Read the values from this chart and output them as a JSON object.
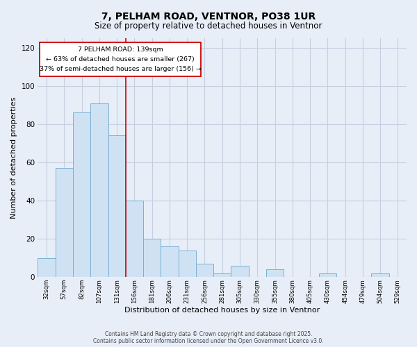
{
  "title": "7, PELHAM ROAD, VENTNOR, PO38 1UR",
  "subtitle": "Size of property relative to detached houses in Ventnor",
  "xlabel": "Distribution of detached houses by size in Ventnor",
  "ylabel": "Number of detached properties",
  "bar_labels": [
    "32sqm",
    "57sqm",
    "82sqm",
    "107sqm",
    "131sqm",
    "156sqm",
    "181sqm",
    "206sqm",
    "231sqm",
    "256sqm",
    "281sqm",
    "305sqm",
    "330sqm",
    "355sqm",
    "380sqm",
    "405sqm",
    "430sqm",
    "454sqm",
    "479sqm",
    "504sqm",
    "529sqm"
  ],
  "bar_values": [
    10,
    57,
    86,
    91,
    74,
    40,
    20,
    16,
    14,
    7,
    2,
    6,
    0,
    4,
    0,
    0,
    2,
    0,
    0,
    2,
    0
  ],
  "bar_color": "#cfe2f3",
  "bar_edge_color": "#7ab0d4",
  "vline_x_index": 4.5,
  "vline_color": "#cc0000",
  "ylim": [
    0,
    125
  ],
  "yticks": [
    0,
    20,
    40,
    60,
    80,
    100,
    120
  ],
  "annotation_title": "7 PELHAM ROAD: 139sqm",
  "annotation_line1": "← 63% of detached houses are smaller (267)",
  "annotation_line2": "37% of semi-detached houses are larger (156) →",
  "footer1": "Contains HM Land Registry data © Crown copyright and database right 2025.",
  "footer2": "Contains public sector information licensed under the Open Government Licence v3.0.",
  "bg_color": "#e8eef8",
  "plot_bg_color": "#e8eef8",
  "grid_color": "#c5cfdf"
}
